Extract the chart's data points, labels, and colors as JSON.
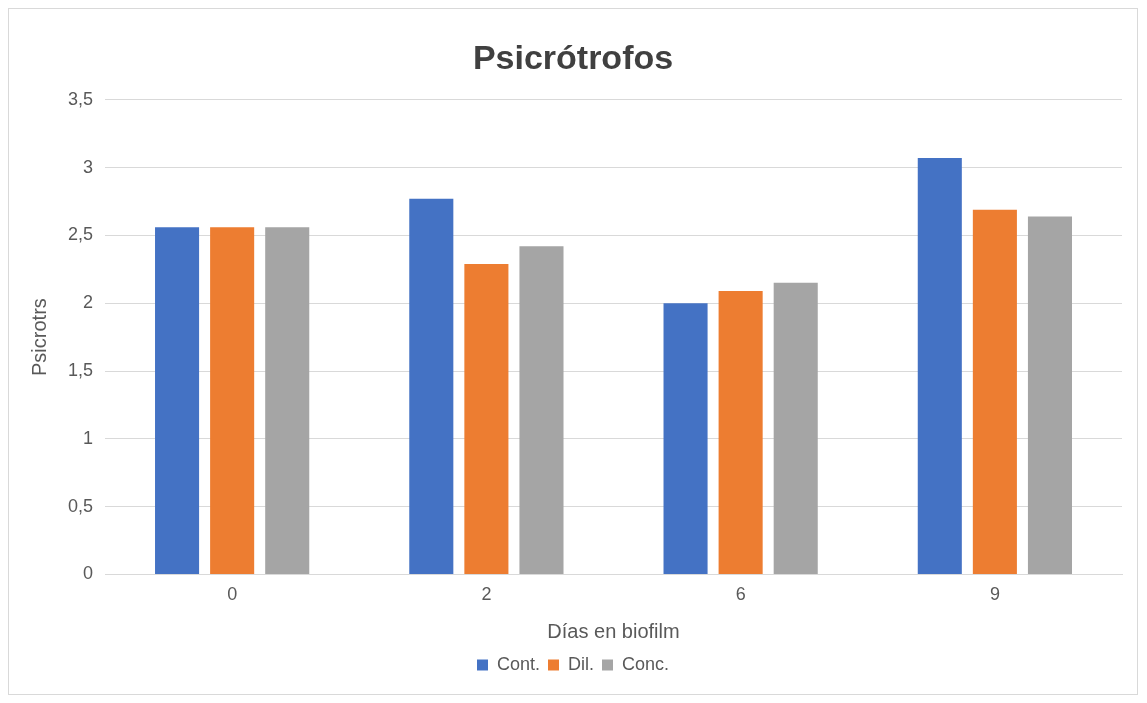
{
  "chart_data": {
    "type": "bar",
    "title": "Psicrótrofos",
    "xlabel": "Días en biofilm",
    "ylabel": "Psicrotrs",
    "categories": [
      "0",
      "2",
      "6",
      "9"
    ],
    "series": [
      {
        "name": "Cont.",
        "color": "#4472c4",
        "values": [
          2.56,
          2.77,
          2.0,
          3.07
        ]
      },
      {
        "name": "Dil.",
        "color": "#ed7d31",
        "values": [
          2.56,
          2.29,
          2.09,
          2.69
        ]
      },
      {
        "name": "Conc.",
        "color": "#a5a5a5",
        "values": [
          2.56,
          2.42,
          2.15,
          2.64
        ]
      }
    ],
    "ylim": [
      0,
      3.5
    ],
    "yticks": [
      0,
      {
        "value": 0.5,
        "label": "0,5"
      },
      1,
      {
        "value": 1.5,
        "label": "1,5"
      },
      2,
      {
        "value": 2.5,
        "label": "2,5"
      },
      3,
      {
        "value": 3.5,
        "label": "3,5"
      }
    ],
    "grid": "y",
    "legend": "bottom"
  }
}
